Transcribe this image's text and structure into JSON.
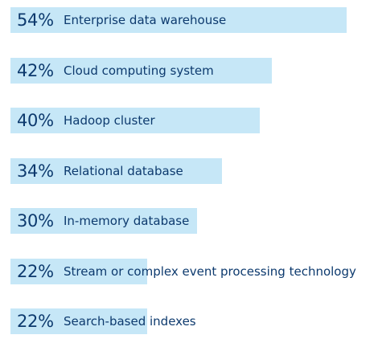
{
  "chart_data": {
    "type": "bar",
    "orientation": "horizontal",
    "categories": [
      "Enterprise data warehouse",
      "Cloud computing system",
      "Hadoop cluster",
      "Relational database",
      "In-memory database",
      "Stream or complex event processing technology",
      "Search-based indexes"
    ],
    "values": [
      54,
      42,
      40,
      34,
      30,
      22,
      22
    ],
    "value_labels": [
      "54%",
      "42%",
      "40%",
      "34%",
      "30%",
      "22%",
      "22%"
    ],
    "unit": "%",
    "title": "",
    "xlabel": "",
    "ylabel": "",
    "grid": false,
    "legend": "none",
    "colors": {
      "bar": "#c6e7f7",
      "text": "#0d3a6e",
      "background": "#ffffff"
    }
  }
}
